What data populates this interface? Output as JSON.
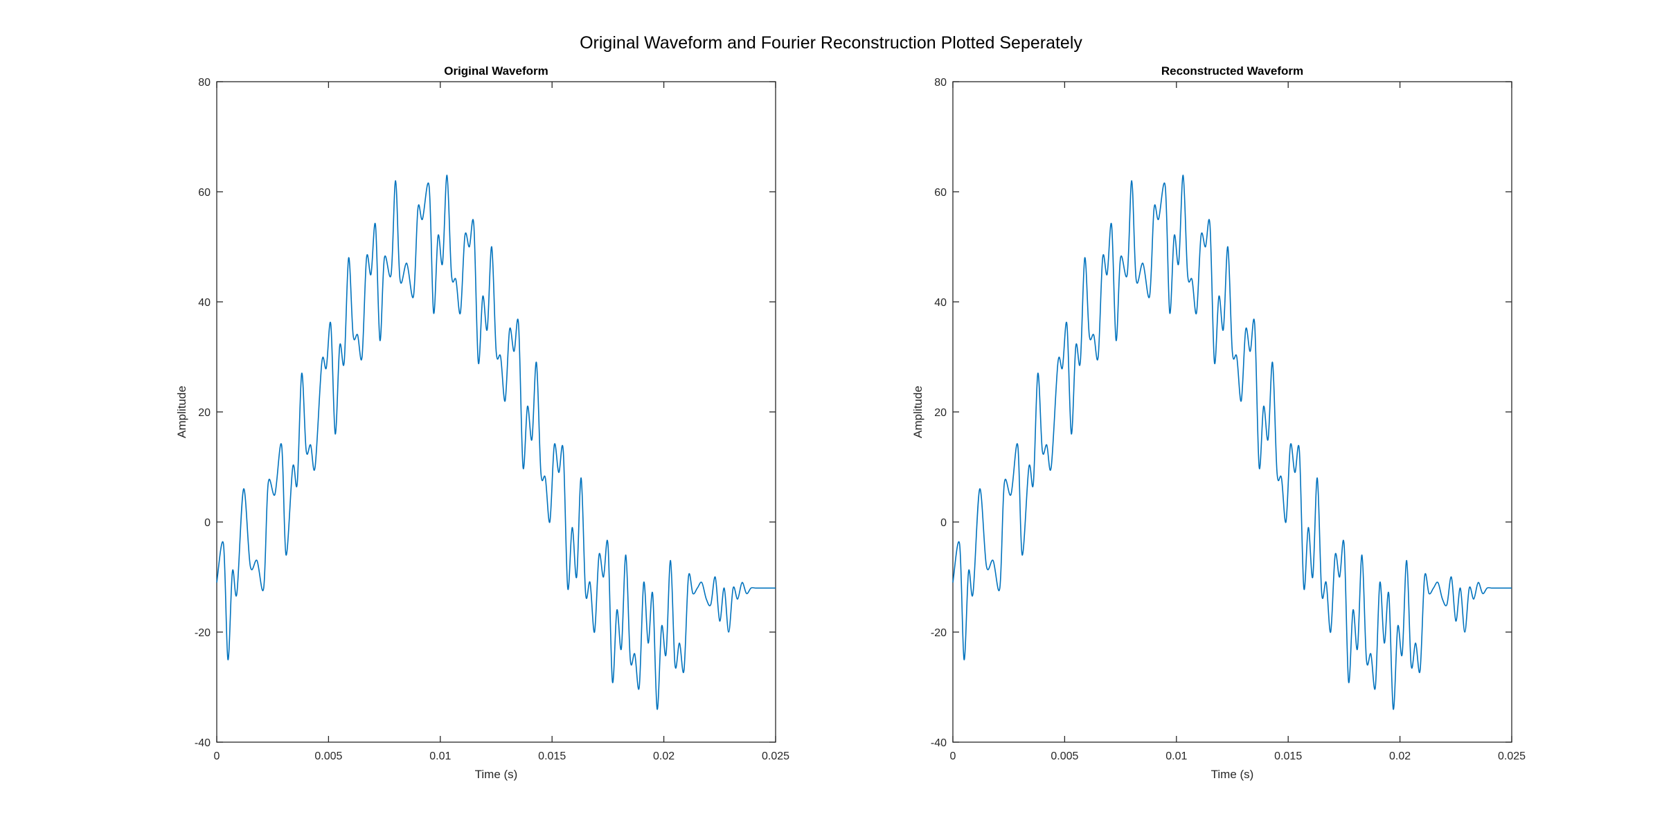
{
  "figure": {
    "title": "Original Waveform and Fourier Reconstruction Plotted Seperately"
  },
  "chart_data": [
    {
      "type": "line",
      "title": "Original Waveform",
      "xlabel": "Time (s)",
      "ylabel": "Amplitude",
      "xlim": [
        0,
        0.025
      ],
      "ylim": [
        -40,
        80
      ],
      "xticks": [
        0,
        0.005,
        0.01,
        0.015,
        0.02,
        0.025
      ],
      "xtick_labels": [
        "0",
        "0.005",
        "0.01",
        "0.015",
        "0.02",
        "0.025"
      ],
      "yticks": [
        -40,
        -20,
        0,
        20,
        40,
        60,
        80
      ],
      "ytick_labels": [
        "-40",
        "-20",
        "0",
        "20",
        "40",
        "60",
        "80"
      ],
      "grid": false,
      "line_color": "#0072BD",
      "series": [
        {
          "x": [
            0,
            0.0003,
            0.0005,
            0.0007,
            0.0009,
            0.0012,
            0.0015,
            0.0018,
            0.0021,
            0.0023,
            0.0026,
            0.0029,
            0.0031,
            0.0034,
            0.0036,
            0.0038,
            0.004,
            0.0042,
            0.0044,
            0.0047,
            0.0049,
            0.0051,
            0.0053,
            0.0055,
            0.0057,
            0.0059,
            0.0061,
            0.0063,
            0.0065,
            0.0067,
            0.0069,
            0.0071,
            0.0073,
            0.0075,
            0.0078,
            0.008,
            0.0082,
            0.0085,
            0.0088,
            0.009,
            0.0092,
            0.0095,
            0.0097,
            0.0099,
            0.0101,
            0.0103,
            0.0105,
            0.0107,
            0.0109,
            0.0111,
            0.0113,
            0.0115,
            0.0117,
            0.0119,
            0.0121,
            0.0123,
            0.0125,
            0.0127,
            0.0129,
            0.0131,
            0.0133,
            0.0135,
            0.0137,
            0.0139,
            0.0141,
            0.0143,
            0.0145,
            0.0147,
            0.0149,
            0.0151,
            0.0153,
            0.0155,
            0.0157,
            0.0159,
            0.0161,
            0.0163,
            0.0165,
            0.0167,
            0.0169,
            0.0171,
            0.0173,
            0.0175,
            0.0177,
            0.0179,
            0.0181,
            0.0183,
            0.0185,
            0.0187,
            0.0189,
            0.0191,
            0.0193,
            0.0195,
            0.0197,
            0.0199,
            0.0201,
            0.0203,
            0.0205,
            0.0207,
            0.0209,
            0.0211,
            0.0213,
            0.0215,
            0.0217,
            0.0219,
            0.0221,
            0.0223,
            0.0225,
            0.0227,
            0.0229,
            0.0231,
            0.0233,
            0.0235,
            0.0237,
            0.0239,
            0.0241,
            0.0243,
            0.0245,
            0.0247,
            0.0249,
            0.025
          ],
          "y": [
            -11,
            -4,
            -25,
            -9,
            -13,
            6,
            -8,
            -7,
            -12,
            7,
            5,
            14,
            -6,
            10,
            7,
            27,
            13,
            14,
            10,
            29,
            28,
            36,
            16,
            32,
            29,
            48,
            34,
            34,
            30,
            48,
            45,
            54,
            33,
            48,
            45,
            62,
            44,
            47,
            41,
            57,
            55,
            61,
            38,
            52,
            47,
            63,
            45,
            44,
            38,
            52,
            50,
            54,
            29,
            41,
            35,
            50,
            31,
            30,
            22,
            35,
            31,
            36,
            10,
            21,
            15,
            29,
            9,
            8,
            0,
            14,
            9,
            13,
            -12,
            -1,
            -10,
            8,
            -13,
            -11,
            -20,
            -6,
            -10,
            -4,
            -29,
            -16,
            -23,
            -6,
            -25,
            -24,
            -30,
            -11,
            -22,
            -13,
            -34,
            -19,
            -24,
            -7,
            -26,
            -22,
            -27,
            -10,
            -13,
            -12,
            -11,
            -14,
            -15,
            -10,
            -18,
            -12,
            -20,
            -12,
            -14,
            -11,
            -13,
            -12,
            -12,
            -12,
            -12,
            -12,
            -12,
            -12
          ]
        }
      ]
    },
    {
      "type": "line",
      "title": "Reconstructed Waveform",
      "xlabel": "Time (s)",
      "ylabel": "Amplitude",
      "xlim": [
        0,
        0.025
      ],
      "ylim": [
        -40,
        80
      ],
      "xticks": [
        0,
        0.005,
        0.01,
        0.015,
        0.02,
        0.025
      ],
      "xtick_labels": [
        "0",
        "0.005",
        "0.01",
        "0.015",
        "0.02",
        "0.025"
      ],
      "yticks": [
        -40,
        -20,
        0,
        20,
        40,
        60,
        80
      ],
      "ytick_labels": [
        "-40",
        "-20",
        "0",
        "20",
        "40",
        "60",
        "80"
      ],
      "grid": false,
      "line_color": "#0072BD",
      "series": [
        {
          "x": [
            0,
            0.0003,
            0.0005,
            0.0007,
            0.0009,
            0.0012,
            0.0015,
            0.0018,
            0.0021,
            0.0023,
            0.0026,
            0.0029,
            0.0031,
            0.0034,
            0.0036,
            0.0038,
            0.004,
            0.0042,
            0.0044,
            0.0047,
            0.0049,
            0.0051,
            0.0053,
            0.0055,
            0.0057,
            0.0059,
            0.0061,
            0.0063,
            0.0065,
            0.0067,
            0.0069,
            0.0071,
            0.0073,
            0.0075,
            0.0078,
            0.008,
            0.0082,
            0.0085,
            0.0088,
            0.009,
            0.0092,
            0.0095,
            0.0097,
            0.0099,
            0.0101,
            0.0103,
            0.0105,
            0.0107,
            0.0109,
            0.0111,
            0.0113,
            0.0115,
            0.0117,
            0.0119,
            0.0121,
            0.0123,
            0.0125,
            0.0127,
            0.0129,
            0.0131,
            0.0133,
            0.0135,
            0.0137,
            0.0139,
            0.0141,
            0.0143,
            0.0145,
            0.0147,
            0.0149,
            0.0151,
            0.0153,
            0.0155,
            0.0157,
            0.0159,
            0.0161,
            0.0163,
            0.0165,
            0.0167,
            0.0169,
            0.0171,
            0.0173,
            0.0175,
            0.0177,
            0.0179,
            0.0181,
            0.0183,
            0.0185,
            0.0187,
            0.0189,
            0.0191,
            0.0193,
            0.0195,
            0.0197,
            0.0199,
            0.0201,
            0.0203,
            0.0205,
            0.0207,
            0.0209,
            0.0211,
            0.0213,
            0.0215,
            0.0217,
            0.0219,
            0.0221,
            0.0223,
            0.0225,
            0.0227,
            0.0229,
            0.0231,
            0.0233,
            0.0235,
            0.0237,
            0.0239,
            0.0241,
            0.0243,
            0.0245,
            0.0247,
            0.0249,
            0.025
          ],
          "y": [
            -11,
            -4,
            -25,
            -9,
            -13,
            6,
            -8,
            -7,
            -12,
            7,
            5,
            14,
            -6,
            10,
            7,
            27,
            13,
            14,
            10,
            29,
            28,
            36,
            16,
            32,
            29,
            48,
            34,
            34,
            30,
            48,
            45,
            54,
            33,
            48,
            45,
            62,
            44,
            47,
            41,
            57,
            55,
            61,
            38,
            52,
            47,
            63,
            45,
            44,
            38,
            52,
            50,
            54,
            29,
            41,
            35,
            50,
            31,
            30,
            22,
            35,
            31,
            36,
            10,
            21,
            15,
            29,
            9,
            8,
            0,
            14,
            9,
            13,
            -12,
            -1,
            -10,
            8,
            -13,
            -11,
            -20,
            -6,
            -10,
            -4,
            -29,
            -16,
            -23,
            -6,
            -25,
            -24,
            -30,
            -11,
            -22,
            -13,
            -34,
            -19,
            -24,
            -7,
            -26,
            -22,
            -27,
            -10,
            -13,
            -12,
            -11,
            -14,
            -15,
            -10,
            -18,
            -12,
            -20,
            -12,
            -14,
            -11,
            -13,
            -12,
            -12,
            -12,
            -12,
            -12,
            -12,
            -12
          ]
        }
      ]
    }
  ]
}
